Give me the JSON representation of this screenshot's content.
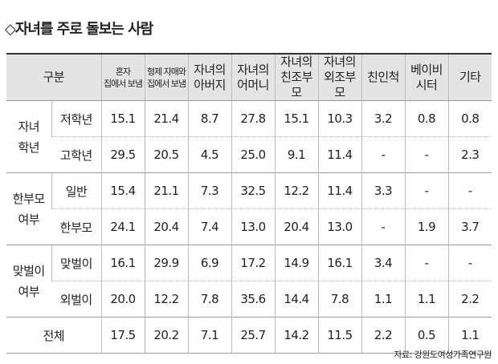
{
  "title": "◇자녀를 주로 돌보는 사람",
  "table": {
    "header": {
      "group": "구분",
      "columns": [
        [
          "혼자",
          "집에서 보냄"
        ],
        [
          "형제 자매와",
          "집에서 보냄"
        ],
        [
          "자녀의",
          "아버지"
        ],
        [
          "자녀의",
          "어머니"
        ],
        [
          "자녀의",
          "친조부모"
        ],
        [
          "자녀의",
          "외조부모"
        ],
        [
          "친인척"
        ],
        [
          "베이비",
          "시터"
        ],
        [
          "기타"
        ]
      ]
    },
    "groups": [
      {
        "label": [
          "자녀",
          "학년"
        ],
        "rows": [
          {
            "label": "저학년",
            "values": [
              "15.1",
              "21.4",
              "8.7",
              "27.8",
              "15.1",
              "10.3",
              "3.2",
              "0.8",
              "0.8"
            ]
          },
          {
            "label": "고학년",
            "values": [
              "29.5",
              "20.5",
              "4.5",
              "25.0",
              "9.1",
              "11.4",
              "-",
              "-",
              "2.3"
            ]
          }
        ]
      },
      {
        "label": [
          "한부모",
          "여부"
        ],
        "rows": [
          {
            "label": "일반",
            "values": [
              "15.4",
              "21.1",
              "7.3",
              "32.5",
              "12.2",
              "11.4",
              "3.3",
              "-",
              "-"
            ]
          },
          {
            "label": "한부모",
            "values": [
              "24.1",
              "20.4",
              "7.4",
              "13.0",
              "20.4",
              "13.0",
              "-",
              "1.9",
              "3.7"
            ]
          }
        ]
      },
      {
        "label": [
          "맞벌이",
          "여부"
        ],
        "rows": [
          {
            "label": "맞벌이",
            "values": [
              "16.1",
              "29.9",
              "6.9",
              "17.2",
              "14.9",
              "16.1",
              "3.4",
              "-",
              "-"
            ]
          },
          {
            "label": "외벌이",
            "values": [
              "20.0",
              "12.2",
              "7.8",
              "35.6",
              "14.4",
              "7.8",
              "1.1",
              "1.1",
              "2.2"
            ]
          }
        ]
      }
    ],
    "total": {
      "label": "전체",
      "values": [
        "17.5",
        "20.2",
        "7.1",
        "25.7",
        "14.2",
        "11.5",
        "2.2",
        "0.5",
        "1.1"
      ]
    }
  },
  "source": "자료: 강원도여성가족연구원"
}
